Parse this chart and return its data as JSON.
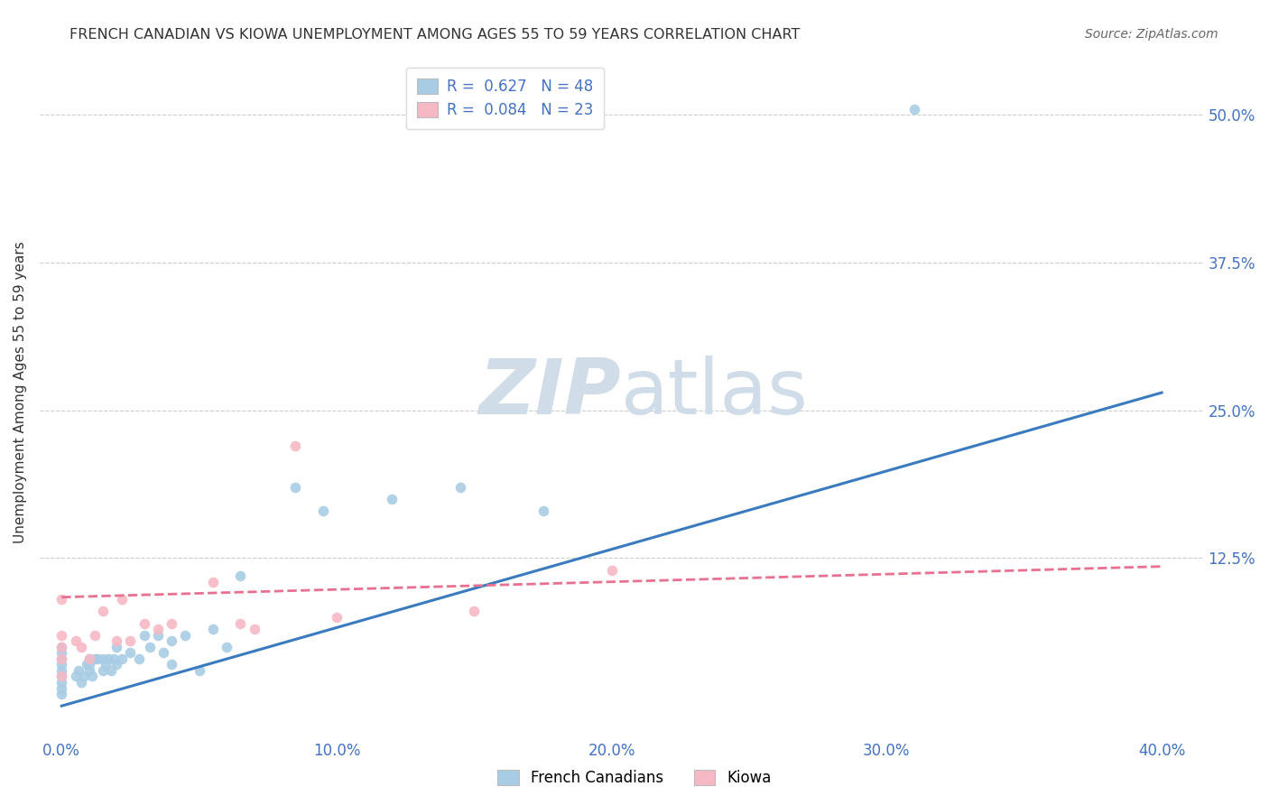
{
  "title": "FRENCH CANADIAN VS KIOWA UNEMPLOYMENT AMONG AGES 55 TO 59 YEARS CORRELATION CHART",
  "source": "Source: ZipAtlas.com",
  "ylabel": "Unemployment Among Ages 55 to 59 years",
  "xlabel_ticks": [
    "0.0%",
    "10.0%",
    "20.0%",
    "30.0%",
    "40.0%"
  ],
  "xlabel_vals": [
    0.0,
    0.1,
    0.2,
    0.3,
    0.4
  ],
  "ylabel_ticks": [
    "12.5%",
    "25.0%",
    "37.5%",
    "50.0%"
  ],
  "ylabel_vals": [
    0.125,
    0.25,
    0.375,
    0.5
  ],
  "xlim": [
    -0.008,
    0.415
  ],
  "ylim": [
    -0.025,
    0.555
  ],
  "french_canadian_R": 0.627,
  "french_canadian_N": 48,
  "kiowa_R": 0.084,
  "kiowa_N": 23,
  "french_canadians_x": [
    0.0,
    0.0,
    0.0,
    0.0,
    0.0,
    0.0,
    0.0,
    0.0,
    0.0,
    0.005,
    0.006,
    0.007,
    0.008,
    0.009,
    0.01,
    0.01,
    0.01,
    0.011,
    0.012,
    0.013,
    0.015,
    0.015,
    0.016,
    0.017,
    0.018,
    0.019,
    0.02,
    0.02,
    0.022,
    0.025,
    0.028,
    0.03,
    0.032,
    0.035,
    0.037,
    0.04,
    0.04,
    0.045,
    0.05,
    0.055,
    0.06,
    0.065,
    0.085,
    0.095,
    0.12,
    0.145,
    0.175,
    0.31
  ],
  "french_canadians_y": [
    0.01,
    0.015,
    0.02,
    0.025,
    0.03,
    0.035,
    0.04,
    0.045,
    0.05,
    0.025,
    0.03,
    0.02,
    0.025,
    0.035,
    0.03,
    0.035,
    0.04,
    0.025,
    0.04,
    0.04,
    0.03,
    0.04,
    0.035,
    0.04,
    0.03,
    0.04,
    0.035,
    0.05,
    0.04,
    0.045,
    0.04,
    0.06,
    0.05,
    0.06,
    0.045,
    0.055,
    0.035,
    0.06,
    0.03,
    0.065,
    0.05,
    0.11,
    0.185,
    0.165,
    0.175,
    0.185,
    0.165,
    0.505
  ],
  "kiowa_x": [
    0.0,
    0.0,
    0.0,
    0.0,
    0.0,
    0.005,
    0.007,
    0.01,
    0.012,
    0.015,
    0.02,
    0.022,
    0.025,
    0.03,
    0.035,
    0.04,
    0.055,
    0.065,
    0.07,
    0.085,
    0.1,
    0.15,
    0.2
  ],
  "kiowa_y": [
    0.025,
    0.04,
    0.05,
    0.06,
    0.09,
    0.055,
    0.05,
    0.04,
    0.06,
    0.08,
    0.055,
    0.09,
    0.055,
    0.07,
    0.065,
    0.07,
    0.105,
    0.07,
    0.065,
    0.22,
    0.075,
    0.08,
    0.115
  ],
  "blue_marker_color": "#a8cce4",
  "blue_line_color": "#3a7abf",
  "pink_marker_color": "#f5b8c4",
  "pink_line_color": "#e87090",
  "watermark_color": "#d0dce8",
  "grid_color": "#cccccc",
  "title_color": "#333333",
  "axis_label_color": "#4472c4",
  "legend_blue_label_r": "R =  0.627",
  "legend_blue_label_n": "N = 48",
  "legend_pink_label_r": "R =  0.084",
  "legend_pink_label_n": "N = 23",
  "legend_bottom": [
    "French Canadians",
    "Kiowa"
  ],
  "blue_line_x0": 0.0,
  "blue_line_y0": 0.0,
  "blue_line_x1": 0.4,
  "blue_line_y1": 0.265,
  "pink_line_x0": 0.0,
  "pink_line_y0": 0.092,
  "pink_line_x1": 0.4,
  "pink_line_y1": 0.118
}
